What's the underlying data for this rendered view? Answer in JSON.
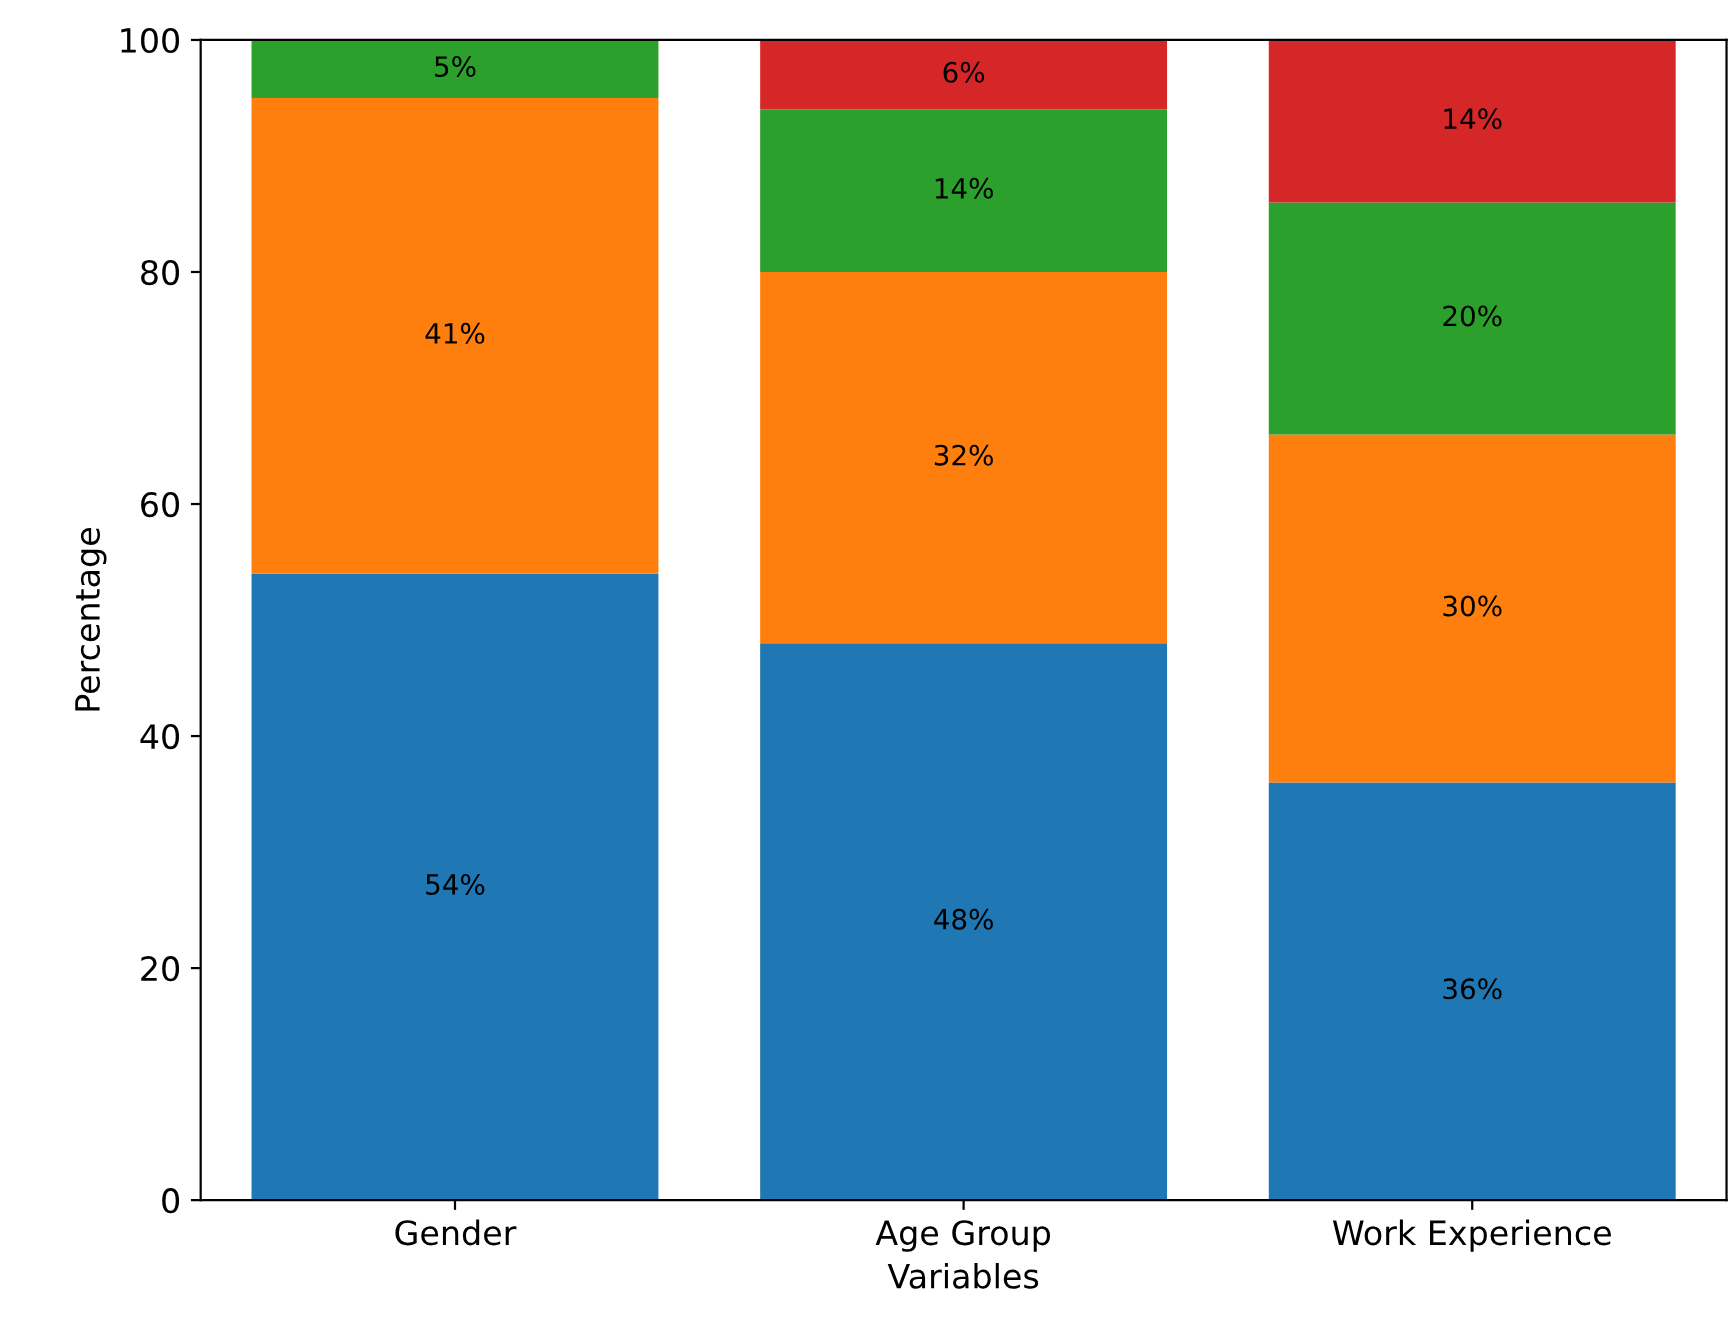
{
  "chart_data": {
    "type": "bar",
    "stacked": true,
    "xlabel": "Variables",
    "ylabel": "Percentage",
    "categories": [
      "Gender",
      "Age Group",
      "Work Experience"
    ],
    "series": [
      {
        "color": "#1f77b4",
        "values": [
          54,
          48,
          36
        ],
        "value_labels": [
          "54%",
          "48%",
          "36%"
        ]
      },
      {
        "color": "#ff7f0e",
        "values": [
          41,
          32,
          30
        ],
        "value_labels": [
          "41%",
          "32%",
          "30%"
        ]
      },
      {
        "color": "#2ca02c",
        "values": [
          5,
          14,
          20
        ],
        "value_labels": [
          "5%",
          "14%",
          "20%"
        ]
      },
      {
        "color": "#d62728",
        "values": [
          null,
          6,
          14
        ],
        "value_labels": [
          null,
          "6%",
          "14%"
        ]
      }
    ],
    "ylim": [
      0,
      100
    ],
    "yticks": [
      0,
      20,
      40,
      60,
      80,
      100
    ],
    "grid": false
  }
}
